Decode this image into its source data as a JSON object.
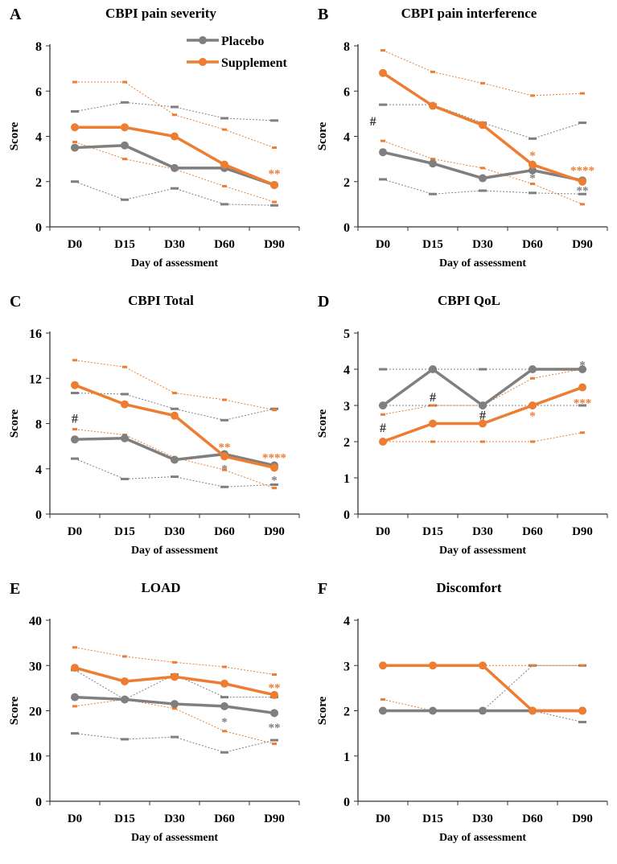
{
  "colors": {
    "placebo": "#7f7f7f",
    "supplement": "#ed7d31",
    "annotation_dark": "#333333"
  },
  "legend": {
    "entries": [
      "Placebo",
      "Supplement"
    ],
    "placement": "top-right",
    "panel": "A"
  },
  "chart_data": [
    {
      "letter": "A",
      "title": "CBPI pain severity",
      "type": "line",
      "categories": [
        "D0",
        "D15",
        "D30",
        "D60",
        "D90"
      ],
      "xlabel": "Day of assessment",
      "ylabel": "Score",
      "ylim": [
        0,
        8
      ],
      "yticks": [
        0,
        2,
        4,
        6,
        8
      ],
      "series": [
        {
          "name": "Placebo",
          "mean": [
            3.5,
            3.6,
            2.6,
            2.6,
            1.85
          ],
          "upper": [
            5.1,
            5.5,
            5.3,
            4.8,
            4.7
          ],
          "lower": [
            2.0,
            1.2,
            1.7,
            1.0,
            0.95
          ]
        },
        {
          "name": "Supplement",
          "mean": [
            4.4,
            4.4,
            4.0,
            2.75,
            1.85
          ],
          "upper": [
            6.4,
            6.4,
            4.95,
            4.3,
            3.5
          ],
          "lower": [
            3.75,
            3.0,
            2.55,
            1.8,
            1.1
          ]
        }
      ],
      "annotations": [
        {
          "text": "**",
          "x": "D90",
          "y": 2.4,
          "color": "supplement"
        }
      ]
    },
    {
      "letter": "B",
      "title": "CBPI pain interference",
      "type": "line",
      "categories": [
        "D0",
        "D15",
        "D30",
        "D60",
        "D90"
      ],
      "xlabel": "Day of assessment",
      "ylabel": "Score",
      "ylim": [
        0,
        8
      ],
      "yticks": [
        0,
        2,
        4,
        6,
        8
      ],
      "series": [
        {
          "name": "Placebo",
          "mean": [
            3.3,
            2.8,
            2.15,
            2.5,
            2.05
          ],
          "upper": [
            5.4,
            5.4,
            4.6,
            3.9,
            4.6
          ],
          "lower": [
            2.1,
            1.45,
            1.6,
            1.5,
            1.45
          ]
        },
        {
          "name": "Supplement",
          "mean": [
            6.8,
            5.35,
            4.5,
            2.75,
            2.0
          ],
          "upper": [
            7.8,
            6.85,
            6.35,
            5.8,
            5.9
          ],
          "lower": [
            3.8,
            3.0,
            2.6,
            1.9,
            1.0
          ]
        }
      ],
      "annotations": [
        {
          "text": "#",
          "x": "D0",
          "y": 4.7,
          "color": "dark",
          "offset": -0.2
        },
        {
          "text": "*",
          "x": "D60",
          "y": 3.2,
          "color": "supplement"
        },
        {
          "text": "*",
          "x": "D60",
          "y": 2.2,
          "color": "placebo"
        },
        {
          "text": "****",
          "x": "D90",
          "y": 2.55,
          "color": "supplement"
        },
        {
          "text": "**",
          "x": "D90",
          "y": 1.65,
          "color": "placebo"
        }
      ]
    },
    {
      "letter": "C",
      "title": "CBPI Total",
      "type": "line",
      "categories": [
        "D0",
        "D15",
        "D30",
        "D60",
        "D90"
      ],
      "xlabel": "Day of assessment",
      "ylabel": "Score",
      "ylim": [
        0,
        16
      ],
      "yticks": [
        0,
        4,
        8,
        12,
        16
      ],
      "series": [
        {
          "name": "Placebo",
          "mean": [
            6.6,
            6.7,
            4.8,
            5.3,
            4.3
          ],
          "upper": [
            10.7,
            10.6,
            9.3,
            8.3,
            9.3
          ],
          "lower": [
            4.9,
            3.1,
            3.3,
            2.4,
            2.6
          ]
        },
        {
          "name": "Supplement",
          "mean": [
            11.4,
            9.7,
            8.7,
            5.1,
            4.1
          ],
          "upper": [
            13.6,
            13.0,
            10.7,
            10.1,
            9.2
          ],
          "lower": [
            7.5,
            7.0,
            5.0,
            3.9,
            2.3
          ]
        }
      ],
      "annotations": [
        {
          "text": "#",
          "x": "D0",
          "y": 8.5,
          "color": "dark"
        },
        {
          "text": "**",
          "x": "D60",
          "y": 6.0,
          "color": "supplement"
        },
        {
          "text": "*",
          "x": "D60",
          "y": 4.1,
          "color": "placebo"
        },
        {
          "text": "****",
          "x": "D90",
          "y": 5.1,
          "color": "supplement"
        },
        {
          "text": "*",
          "x": "D90",
          "y": 3.1,
          "color": "placebo"
        }
      ]
    },
    {
      "letter": "D",
      "title": "CBPI QoL",
      "type": "line",
      "categories": [
        "D0",
        "D15",
        "D30",
        "D60",
        "D90"
      ],
      "xlabel": "Day of assessment",
      "ylabel": "Score",
      "ylim": [
        0,
        5
      ],
      "yticks": [
        0,
        1,
        2,
        3,
        4,
        5
      ],
      "series": [
        {
          "name": "Placebo",
          "mean": [
            3,
            4,
            3,
            4,
            4
          ],
          "upper": [
            4,
            4,
            4,
            4,
            4
          ],
          "lower": [
            3,
            3,
            3,
            3,
            3
          ]
        },
        {
          "name": "Supplement",
          "mean": [
            2,
            2.5,
            2.5,
            3,
            3.5
          ],
          "upper": [
            2.75,
            3,
            3,
            3.75,
            4
          ],
          "lower": [
            2,
            2,
            2,
            2,
            2.25
          ]
        }
      ],
      "annotations": [
        {
          "text": "#",
          "x": "D0",
          "y": 2.4,
          "color": "dark"
        },
        {
          "text": "#",
          "x": "D15",
          "y": 3.25,
          "color": "dark"
        },
        {
          "text": "#",
          "x": "D30",
          "y": 2.75,
          "color": "dark"
        },
        {
          "text": "*",
          "x": "D60",
          "y": 2.75,
          "color": "supplement"
        },
        {
          "text": "***",
          "x": "D90",
          "y": 3.1,
          "color": "supplement"
        },
        {
          "text": "*",
          "x": "D90",
          "y": 4.15,
          "color": "placebo"
        }
      ]
    },
    {
      "letter": "E",
      "title": "LOAD",
      "type": "line",
      "categories": [
        "D0",
        "D15",
        "D30",
        "D60",
        "D90"
      ],
      "xlabel": "Day of assessment",
      "ylabel": "Score",
      "ylim": [
        0,
        40
      ],
      "yticks": [
        0,
        10,
        20,
        30,
        40
      ],
      "series": [
        {
          "name": "Placebo",
          "mean": [
            23,
            22.5,
            21.5,
            21,
            19.5
          ],
          "upper": [
            29,
            22.5,
            28,
            23,
            23
          ],
          "lower": [
            15,
            13.7,
            14.2,
            10.8,
            13.5
          ]
        },
        {
          "name": "Supplement",
          "mean": [
            29.5,
            26.5,
            27.5,
            26,
            23.5
          ],
          "upper": [
            34,
            32,
            30.7,
            29.7,
            28
          ],
          "lower": [
            21,
            22.5,
            20.5,
            15.5,
            12.7
          ]
        }
      ],
      "annotations": [
        {
          "text": "**",
          "x": "D90",
          "y": 25.3,
          "color": "supplement"
        },
        {
          "text": "*",
          "x": "D60",
          "y": 17.8,
          "color": "placebo"
        },
        {
          "text": "**",
          "x": "D90",
          "y": 16.5,
          "color": "placebo"
        }
      ]
    },
    {
      "letter": "F",
      "title": "Discomfort",
      "type": "line",
      "categories": [
        "D0",
        "D15",
        "D30",
        "D60",
        "D90"
      ],
      "xlabel": "Day of assessment",
      "ylabel": "Score",
      "ylim": [
        0,
        4
      ],
      "yticks": [
        0,
        1,
        2,
        3,
        4
      ],
      "series": [
        {
          "name": "Placebo",
          "mean": [
            2,
            2,
            2,
            2,
            2
          ],
          "upper": [
            2,
            2,
            2,
            3,
            3
          ],
          "lower": [
            2,
            2,
            2,
            2,
            1.75
          ]
        },
        {
          "name": "Supplement",
          "mean": [
            3,
            3,
            3,
            2,
            2
          ],
          "upper": [
            3,
            3,
            3,
            3,
            3
          ],
          "lower": [
            2.25,
            2,
            2,
            2,
            2
          ]
        }
      ],
      "annotations": []
    }
  ]
}
